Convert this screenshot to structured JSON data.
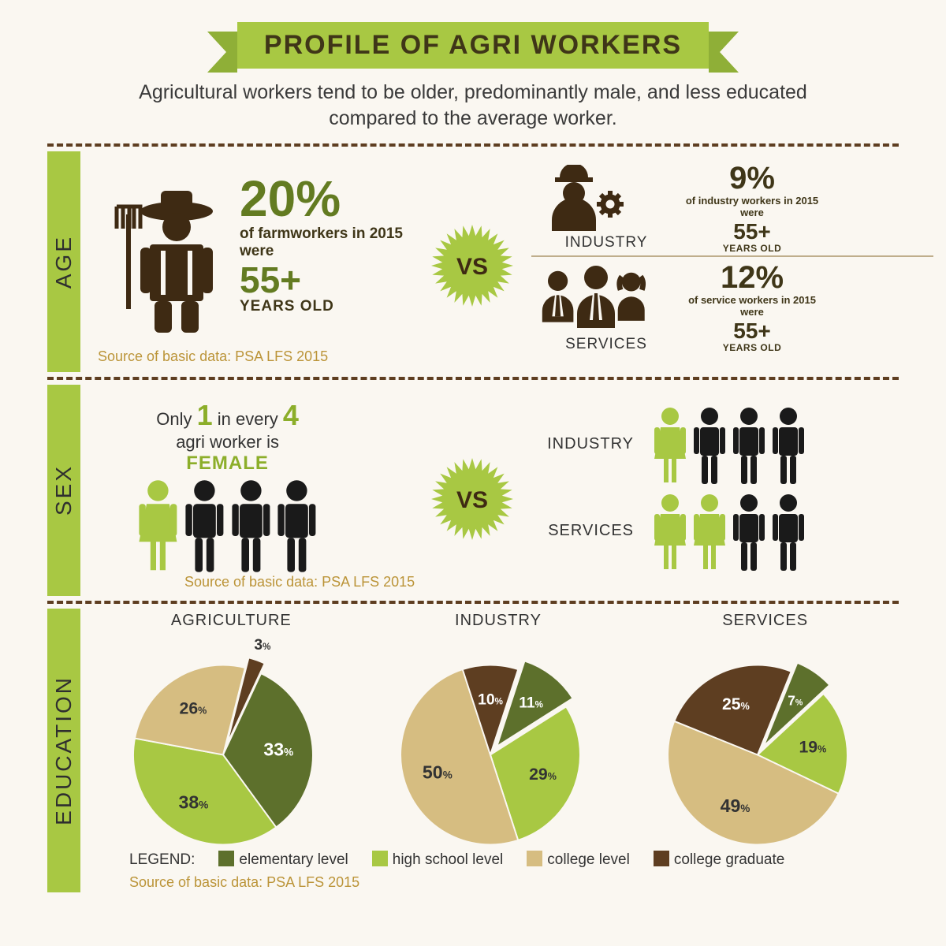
{
  "colors": {
    "banner_bg": "#a8c843",
    "banner_ribbon": "#8faf37",
    "banner_text": "#3f3618",
    "dash": "#5e3e21",
    "dark_icon": "#3e2a13",
    "olive": "#637b21",
    "lime": "#a8c843",
    "source": "#bb9438",
    "black_person": "#1a1a1a",
    "pie_elementary": "#5d702c",
    "pie_highschool": "#a8c843",
    "pie_college": "#d6bd81",
    "pie_graduate": "#5e3e21"
  },
  "header": {
    "title": "PROFILE OF AGRI WORKERS",
    "subtitle": "Agricultural workers tend to be older, predominantly male, and less educated compared to the average worker."
  },
  "age": {
    "tab": "AGE",
    "farm_pct": "20%",
    "farm_sub": "of farmworkers in 2015 were",
    "farm_age": "55+",
    "farm_unit": "YEARS OLD",
    "vs": "VS",
    "source": "Source of basic data: PSA LFS 2015",
    "industry": {
      "label": "INDUSTRY",
      "pct": "9%",
      "sub": "of industry workers in 2015 were",
      "age": "55+",
      "unit": "YEARS OLD"
    },
    "services": {
      "label": "SERVICES",
      "pct": "12%",
      "sub": "of service workers in 2015 were",
      "age": "55+",
      "unit": "YEARS OLD"
    }
  },
  "sex": {
    "tab": "SEX",
    "line1_a": "Only ",
    "line1_num1": "1",
    "line1_b": " in every ",
    "line1_num2": "4",
    "line2": "agri worker is",
    "female": "FEMALE",
    "vs": "VS",
    "source": "Source of basic data: PSA LFS 2015",
    "agri_people": [
      "F",
      "M",
      "M",
      "M"
    ],
    "industry": {
      "label": "INDUSTRY",
      "people": [
        "F",
        "M",
        "M",
        "M"
      ]
    },
    "services": {
      "label": "SERVICES",
      "people": [
        "F",
        "F",
        "M",
        "M"
      ]
    }
  },
  "edu": {
    "tab": "EDUCATION",
    "source": "Source of basic data: PSA LFS 2015",
    "legend_head": "LEGEND:",
    "legend": [
      {
        "label": "elementary level",
        "color": "#5d702c"
      },
      {
        "label": "high school level",
        "color": "#a8c843"
      },
      {
        "label": "college level",
        "color": "#d6bd81"
      },
      {
        "label": "college graduate",
        "color": "#5e3e21"
      }
    ],
    "pies": [
      {
        "title": "AGRICULTURE",
        "radius": 118,
        "start_angle": -65,
        "exploded_index": 3,
        "slices": [
          {
            "label": "33%",
            "value": 33,
            "color": "#5d702c",
            "label_color": "#fff",
            "label_fs": 24
          },
          {
            "label": "38%",
            "value": 38,
            "color": "#a8c843",
            "label_color": "#333",
            "label_fs": 24
          },
          {
            "label": "26%",
            "value": 26,
            "color": "#d6bd81",
            "label_color": "#333",
            "label_fs": 22
          },
          {
            "label": "3%",
            "value": 3,
            "color": "#5e3e21",
            "label_color": "#333",
            "label_fs": 20,
            "outside": true
          }
        ]
      },
      {
        "title": "INDUSTRY",
        "radius": 118,
        "start_angle": -72,
        "exploded_index": 0,
        "slices": [
          {
            "label": "11%",
            "value": 11,
            "color": "#5d702c",
            "label_color": "#fff",
            "label_fs": 20
          },
          {
            "label": "29%",
            "value": 29,
            "color": "#a8c843",
            "label_color": "#333",
            "label_fs": 22
          },
          {
            "label": "50%",
            "value": 50,
            "color": "#d6bd81",
            "label_color": "#333",
            "label_fs": 24
          },
          {
            "label": "10%",
            "value": 10,
            "color": "#5e3e21",
            "label_color": "#fff",
            "label_fs": 20
          }
        ]
      },
      {
        "title": "SERVICES",
        "radius": 118,
        "start_angle": -68,
        "exploded_index": 0,
        "slices": [
          {
            "label": "7%",
            "value": 7,
            "color": "#5d702c",
            "label_color": "#fff",
            "label_fs": 18
          },
          {
            "label": "19%",
            "value": 19,
            "color": "#a8c843",
            "label_color": "#333",
            "label_fs": 22
          },
          {
            "label": "49%",
            "value": 49,
            "color": "#d6bd81",
            "label_color": "#333",
            "label_fs": 24
          },
          {
            "label": "25%",
            "value": 25,
            "color": "#5e3e21",
            "label_color": "#fff",
            "label_fs": 22
          }
        ]
      }
    ]
  }
}
